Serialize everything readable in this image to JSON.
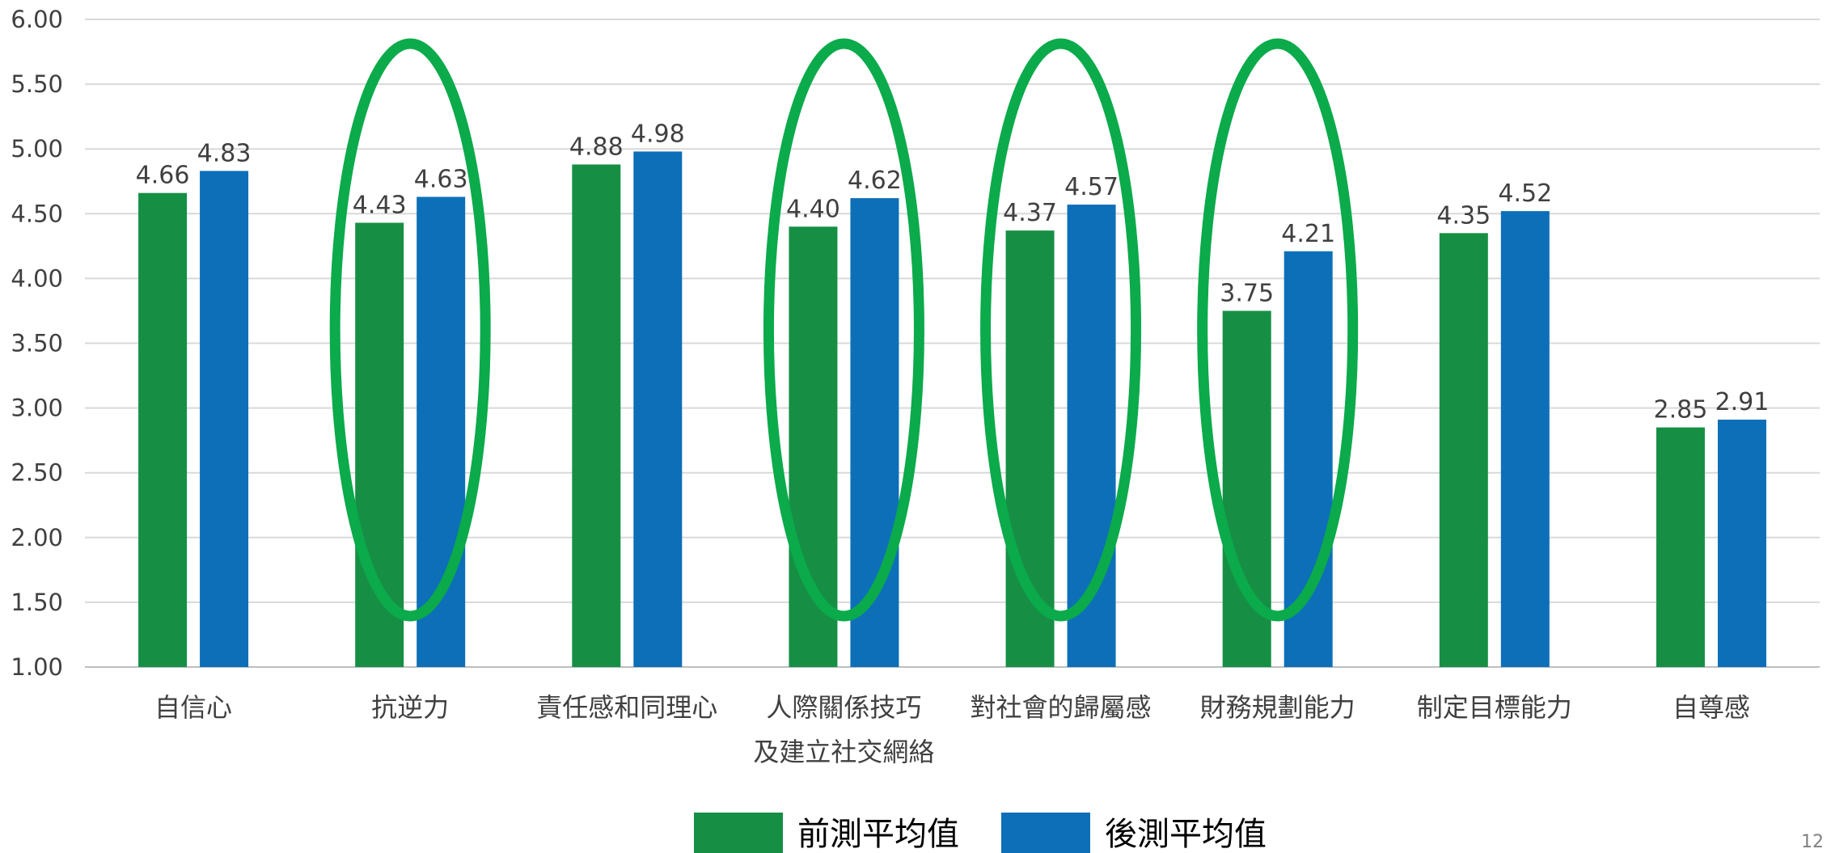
{
  "page_number": "12",
  "chart_data": {
    "type": "bar",
    "categories": [
      [
        "自信心"
      ],
      [
        "抗逆力"
      ],
      [
        "責任感和同理心"
      ],
      [
        "人際關係技巧",
        "及建立社交網絡"
      ],
      [
        "對社會的歸屬感"
      ],
      [
        "財務規劃能力"
      ],
      [
        "制定目標能力"
      ],
      [
        "自尊感"
      ]
    ],
    "series": [
      {
        "name": "前測平均值",
        "color": "#168F45",
        "values": [
          4.66,
          4.43,
          4.88,
          4.4,
          4.37,
          3.75,
          4.35,
          2.85
        ]
      },
      {
        "name": "後測平均值",
        "color": "#0D6FB8",
        "values": [
          4.83,
          4.63,
          4.98,
          4.62,
          4.57,
          4.21,
          4.52,
          2.91
        ]
      }
    ],
    "ylim": [
      1.0,
      6.0
    ],
    "yticks": [
      "1.00",
      "1.50",
      "2.00",
      "2.50",
      "3.00",
      "3.50",
      "4.00",
      "4.50",
      "5.00",
      "5.50",
      "6.00"
    ],
    "grid": true,
    "legend": "bottom-center",
    "highlighted_categories": [
      1,
      3,
      4,
      5
    ],
    "highlight_color": "#0BAA4B"
  }
}
